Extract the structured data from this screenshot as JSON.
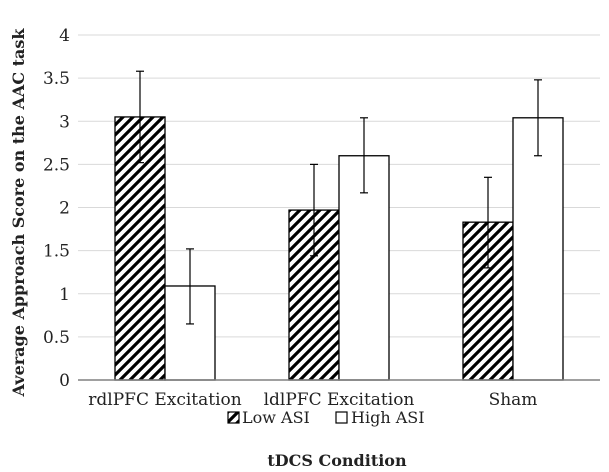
{
  "chart_data": {
    "type": "bar",
    "title": "",
    "xlabel": "tDCS Condition",
    "ylabel": "Average Approach Score on the AAC task",
    "categories": [
      "rdlPFC Excitation",
      "ldlPFC Excitation",
      "Sham"
    ],
    "series": [
      {
        "name": "Low ASI",
        "pattern": "diagonal-hatch",
        "values": [
          3.05,
          1.97,
          1.83
        ],
        "error_low": [
          2.52,
          1.44,
          1.3
        ],
        "error_high": [
          3.58,
          2.5,
          2.35
        ]
      },
      {
        "name": "High ASI",
        "pattern": "solid-white",
        "values": [
          1.09,
          2.6,
          3.04
        ],
        "error_low": [
          0.65,
          2.17,
          2.6
        ],
        "error_high": [
          1.52,
          3.04,
          3.48
        ]
      }
    ],
    "ylim": [
      0,
      4
    ],
    "yticks": [
      "0",
      "0.5",
      "1",
      "1.5",
      "2",
      "2.5",
      "3",
      "3.5",
      "4"
    ],
    "grid": true,
    "legend_position": "bottom",
    "colors": {
      "bar_edge": "#000000",
      "grid": "#d9d9d9",
      "axis": "#808080",
      "fill": "#ffffff"
    }
  }
}
